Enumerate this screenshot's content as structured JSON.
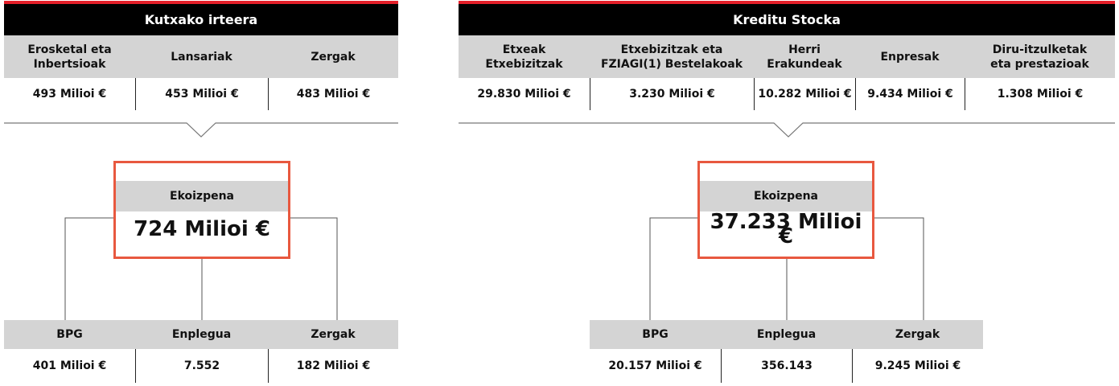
{
  "panels": [
    {
      "title": "Kutxako irteera",
      "columns": [
        {
          "label": [
            "Erosketal eta",
            "Inbertsioak"
          ],
          "value": "493 Milioi €"
        },
        {
          "label": [
            "Lansariak"
          ],
          "value": "453 Milioi €"
        },
        {
          "label": [
            "Zergak"
          ],
          "value": "483 Milioi €"
        }
      ],
      "center": {
        "label": "Ekoizpena",
        "value": "724 Milioi €"
      },
      "outputs": [
        {
          "label": "BPG",
          "value": "401 Milioi €"
        },
        {
          "label": "Enplegua",
          "value": "7.552"
        },
        {
          "label": "Zergak",
          "value": "182 Milioi €"
        }
      ]
    },
    {
      "title": "Kreditu Stocka",
      "columns": [
        {
          "label": [
            "Etxeak",
            "Etxebizitzak"
          ],
          "value": "29.830 Milioi €"
        },
        {
          "label": [
            "Etxebizitzak eta",
            "FZIAGI(1) Bestelakoak"
          ],
          "value": "3.230 Milioi €"
        },
        {
          "label": [
            "Herri",
            "Erakundeak"
          ],
          "value": "10.282 Milioi €"
        },
        {
          "label": [
            "Enpresak"
          ],
          "value": "9.434 Milioi €"
        },
        {
          "label": [
            "Diru-itzulketak",
            "eta prestazioak"
          ],
          "value": "1.308 Milioi €"
        }
      ],
      "center": {
        "label": "Ekoizpena",
        "value": "37.233 Milioi €"
      },
      "outputs": [
        {
          "label": "BPG",
          "value": "20.157 Milioi €"
        },
        {
          "label": "Enplegua",
          "value": "356.143"
        },
        {
          "label": "Zergak",
          "value": "9.245 Milioi €"
        }
      ]
    }
  ]
}
